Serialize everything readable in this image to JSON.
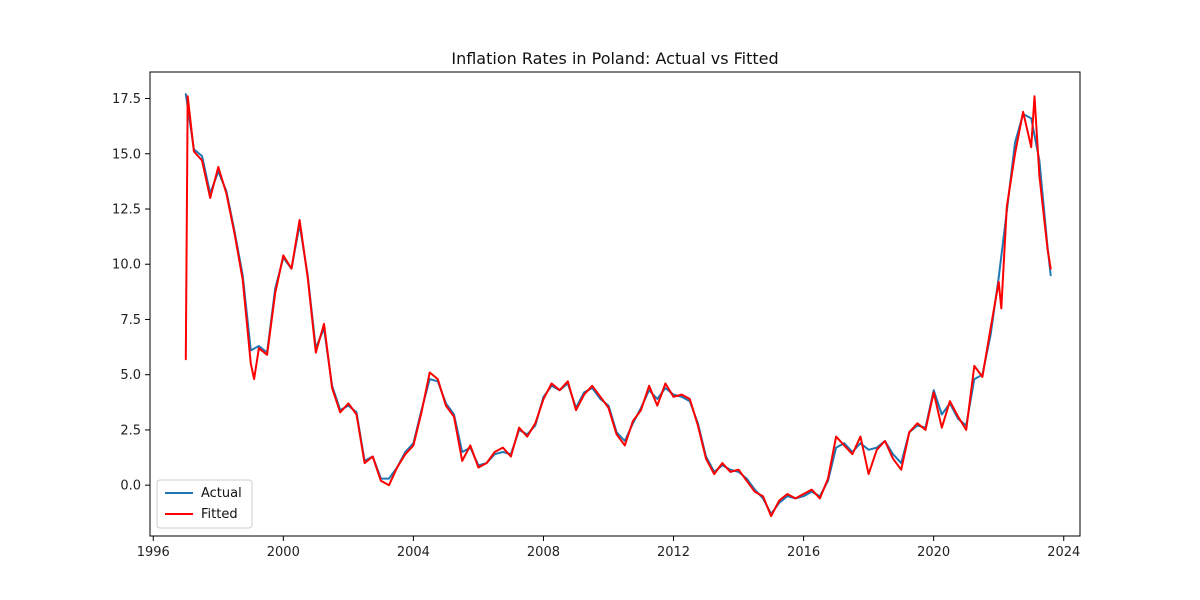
{
  "chart_data": {
    "type": "line",
    "title": "Inflation Rates in Poland: Actual vs Fitted",
    "xlabel": "",
    "ylabel": "",
    "xlim": [
      1995.9,
      2024.5
    ],
    "ylim": [
      -2.3,
      18.7
    ],
    "x_ticks": [
      1996,
      2000,
      2004,
      2008,
      2012,
      2016,
      2020,
      2024
    ],
    "x_tick_labels": [
      "1996",
      "2000",
      "2004",
      "2008",
      "2012",
      "2016",
      "2020",
      "2024"
    ],
    "y_ticks": [
      0.0,
      2.5,
      5.0,
      7.5,
      10.0,
      12.5,
      15.0,
      17.5
    ],
    "y_tick_labels": [
      "0.0",
      "2.5",
      "5.0",
      "7.5",
      "10.0",
      "12.5",
      "15.0",
      "17.5"
    ],
    "grid": false,
    "legend_position": "lower-left",
    "series": [
      {
        "name": "Actual",
        "color": "#1f77b4",
        "points": [
          [
            1997.0,
            17.7
          ],
          [
            1997.25,
            15.2
          ],
          [
            1997.5,
            14.9
          ],
          [
            1997.75,
            13.2
          ],
          [
            1998.0,
            14.2
          ],
          [
            1998.25,
            13.3
          ],
          [
            1998.5,
            11.5
          ],
          [
            1998.75,
            9.5
          ],
          [
            1999.0,
            6.1
          ],
          [
            1999.25,
            6.3
          ],
          [
            1999.5,
            6.0
          ],
          [
            1999.75,
            8.9
          ],
          [
            2000.0,
            10.3
          ],
          [
            2000.25,
            9.8
          ],
          [
            2000.5,
            11.8
          ],
          [
            2000.75,
            9.5
          ],
          [
            2001.0,
            6.2
          ],
          [
            2001.25,
            7.1
          ],
          [
            2001.5,
            4.5
          ],
          [
            2001.75,
            3.4
          ],
          [
            2002.0,
            3.6
          ],
          [
            2002.25,
            3.3
          ],
          [
            2002.5,
            1.1
          ],
          [
            2002.75,
            1.3
          ],
          [
            2003.0,
            0.3
          ],
          [
            2003.25,
            0.3
          ],
          [
            2003.5,
            0.8
          ],
          [
            2003.75,
            1.5
          ],
          [
            2004.0,
            1.9
          ],
          [
            2004.25,
            3.4
          ],
          [
            2004.5,
            4.8
          ],
          [
            2004.75,
            4.7
          ],
          [
            2005.0,
            3.7
          ],
          [
            2005.25,
            3.2
          ],
          [
            2005.5,
            1.5
          ],
          [
            2005.75,
            1.7
          ],
          [
            2006.0,
            0.9
          ],
          [
            2006.25,
            1.0
          ],
          [
            2006.5,
            1.4
          ],
          [
            2006.75,
            1.5
          ],
          [
            2007.0,
            1.4
          ],
          [
            2007.25,
            2.5
          ],
          [
            2007.5,
            2.3
          ],
          [
            2007.75,
            2.7
          ],
          [
            2008.0,
            4.0
          ],
          [
            2008.25,
            4.5
          ],
          [
            2008.5,
            4.3
          ],
          [
            2008.75,
            4.6
          ],
          [
            2009.0,
            3.5
          ],
          [
            2009.25,
            4.2
          ],
          [
            2009.5,
            4.4
          ],
          [
            2009.75,
            3.9
          ],
          [
            2010.0,
            3.6
          ],
          [
            2010.25,
            2.4
          ],
          [
            2010.5,
            2.0
          ],
          [
            2010.75,
            2.8
          ],
          [
            2011.0,
            3.5
          ],
          [
            2011.25,
            4.3
          ],
          [
            2011.5,
            3.9
          ],
          [
            2011.75,
            4.4
          ],
          [
            2012.0,
            4.1
          ],
          [
            2012.25,
            4.0
          ],
          [
            2012.5,
            3.8
          ],
          [
            2012.75,
            2.8
          ],
          [
            2013.0,
            1.3
          ],
          [
            2013.25,
            0.6
          ],
          [
            2013.5,
            0.9
          ],
          [
            2013.75,
            0.7
          ],
          [
            2014.0,
            0.6
          ],
          [
            2014.25,
            0.3
          ],
          [
            2014.5,
            -0.2
          ],
          [
            2014.75,
            -0.6
          ],
          [
            2015.0,
            -1.3
          ],
          [
            2015.25,
            -0.8
          ],
          [
            2015.5,
            -0.5
          ],
          [
            2015.75,
            -0.6
          ],
          [
            2016.0,
            -0.5
          ],
          [
            2016.25,
            -0.3
          ],
          [
            2016.5,
            -0.5
          ],
          [
            2016.75,
            0.2
          ],
          [
            2017.0,
            1.7
          ],
          [
            2017.25,
            1.9
          ],
          [
            2017.5,
            1.5
          ],
          [
            2017.75,
            1.9
          ],
          [
            2018.0,
            1.6
          ],
          [
            2018.25,
            1.7
          ],
          [
            2018.5,
            2.0
          ],
          [
            2018.75,
            1.4
          ],
          [
            2019.0,
            1.0
          ],
          [
            2019.25,
            2.4
          ],
          [
            2019.5,
            2.7
          ],
          [
            2019.75,
            2.6
          ],
          [
            2020.0,
            4.3
          ],
          [
            2020.25,
            3.2
          ],
          [
            2020.5,
            3.7
          ],
          [
            2020.75,
            3.0
          ],
          [
            2021.0,
            2.7
          ],
          [
            2021.25,
            4.8
          ],
          [
            2021.5,
            5.0
          ],
          [
            2021.75,
            6.8
          ],
          [
            2022.0,
            9.4
          ],
          [
            2022.25,
            12.4
          ],
          [
            2022.5,
            15.5
          ],
          [
            2022.75,
            16.8
          ],
          [
            2023.0,
            16.6
          ],
          [
            2023.25,
            14.7
          ],
          [
            2023.5,
            10.8
          ],
          [
            2023.6,
            9.5
          ]
        ]
      },
      {
        "name": "Fitted",
        "color": "#ff0000",
        "points": [
          [
            1997.0,
            5.7
          ],
          [
            1997.06,
            17.6
          ],
          [
            1997.25,
            15.1
          ],
          [
            1997.5,
            14.7
          ],
          [
            1997.75,
            13.0
          ],
          [
            1998.0,
            14.4
          ],
          [
            1998.25,
            13.2
          ],
          [
            1998.5,
            11.4
          ],
          [
            1998.75,
            9.3
          ],
          [
            1999.0,
            5.5
          ],
          [
            1999.1,
            4.8
          ],
          [
            1999.25,
            6.2
          ],
          [
            1999.5,
            5.9
          ],
          [
            1999.75,
            8.7
          ],
          [
            2000.0,
            10.4
          ],
          [
            2000.25,
            9.8
          ],
          [
            2000.5,
            12.0
          ],
          [
            2000.75,
            9.4
          ],
          [
            2001.0,
            6.0
          ],
          [
            2001.25,
            7.3
          ],
          [
            2001.5,
            4.4
          ],
          [
            2001.75,
            3.3
          ],
          [
            2002.0,
            3.7
          ],
          [
            2002.25,
            3.2
          ],
          [
            2002.5,
            1.0
          ],
          [
            2002.75,
            1.3
          ],
          [
            2003.0,
            0.2
          ],
          [
            2003.25,
            0.0
          ],
          [
            2003.5,
            0.8
          ],
          [
            2003.75,
            1.4
          ],
          [
            2004.0,
            1.8
          ],
          [
            2004.25,
            3.3
          ],
          [
            2004.5,
            5.1
          ],
          [
            2004.75,
            4.8
          ],
          [
            2005.0,
            3.6
          ],
          [
            2005.25,
            3.1
          ],
          [
            2005.5,
            1.1
          ],
          [
            2005.75,
            1.8
          ],
          [
            2006.0,
            0.8
          ],
          [
            2006.25,
            1.0
          ],
          [
            2006.5,
            1.5
          ],
          [
            2006.75,
            1.7
          ],
          [
            2007.0,
            1.3
          ],
          [
            2007.25,
            2.6
          ],
          [
            2007.5,
            2.2
          ],
          [
            2007.75,
            2.8
          ],
          [
            2008.0,
            3.9
          ],
          [
            2008.25,
            4.6
          ],
          [
            2008.5,
            4.3
          ],
          [
            2008.75,
            4.7
          ],
          [
            2009.0,
            3.4
          ],
          [
            2009.25,
            4.1
          ],
          [
            2009.5,
            4.5
          ],
          [
            2009.75,
            4.0
          ],
          [
            2010.0,
            3.5
          ],
          [
            2010.25,
            2.3
          ],
          [
            2010.5,
            1.8
          ],
          [
            2010.75,
            2.9
          ],
          [
            2011.0,
            3.4
          ],
          [
            2011.25,
            4.5
          ],
          [
            2011.5,
            3.6
          ],
          [
            2011.75,
            4.6
          ],
          [
            2012.0,
            4.0
          ],
          [
            2012.25,
            4.1
          ],
          [
            2012.5,
            3.9
          ],
          [
            2012.75,
            2.7
          ],
          [
            2013.0,
            1.2
          ],
          [
            2013.25,
            0.5
          ],
          [
            2013.5,
            1.0
          ],
          [
            2013.75,
            0.6
          ],
          [
            2014.0,
            0.7
          ],
          [
            2014.25,
            0.2
          ],
          [
            2014.5,
            -0.3
          ],
          [
            2014.75,
            -0.5
          ],
          [
            2015.0,
            -1.4
          ],
          [
            2015.25,
            -0.7
          ],
          [
            2015.5,
            -0.4
          ],
          [
            2015.75,
            -0.6
          ],
          [
            2016.0,
            -0.4
          ],
          [
            2016.25,
            -0.2
          ],
          [
            2016.5,
            -0.6
          ],
          [
            2016.75,
            0.3
          ],
          [
            2017.0,
            2.2
          ],
          [
            2017.25,
            1.8
          ],
          [
            2017.5,
            1.4
          ],
          [
            2017.75,
            2.2
          ],
          [
            2018.0,
            0.5
          ],
          [
            2018.25,
            1.6
          ],
          [
            2018.5,
            2.0
          ],
          [
            2018.75,
            1.2
          ],
          [
            2019.0,
            0.7
          ],
          [
            2019.25,
            2.4
          ],
          [
            2019.5,
            2.8
          ],
          [
            2019.75,
            2.5
          ],
          [
            2020.0,
            4.2
          ],
          [
            2020.25,
            2.6
          ],
          [
            2020.5,
            3.8
          ],
          [
            2020.75,
            3.1
          ],
          [
            2021.0,
            2.5
          ],
          [
            2021.25,
            5.4
          ],
          [
            2021.5,
            4.9
          ],
          [
            2021.75,
            7.1
          ],
          [
            2022.0,
            9.2
          ],
          [
            2022.08,
            8.0
          ],
          [
            2022.25,
            12.6
          ],
          [
            2022.5,
            15.0
          ],
          [
            2022.75,
            16.9
          ],
          [
            2023.0,
            15.3
          ],
          [
            2023.1,
            17.6
          ],
          [
            2023.25,
            14.0
          ],
          [
            2023.5,
            10.7
          ],
          [
            2023.6,
            9.8
          ]
        ]
      }
    ]
  }
}
